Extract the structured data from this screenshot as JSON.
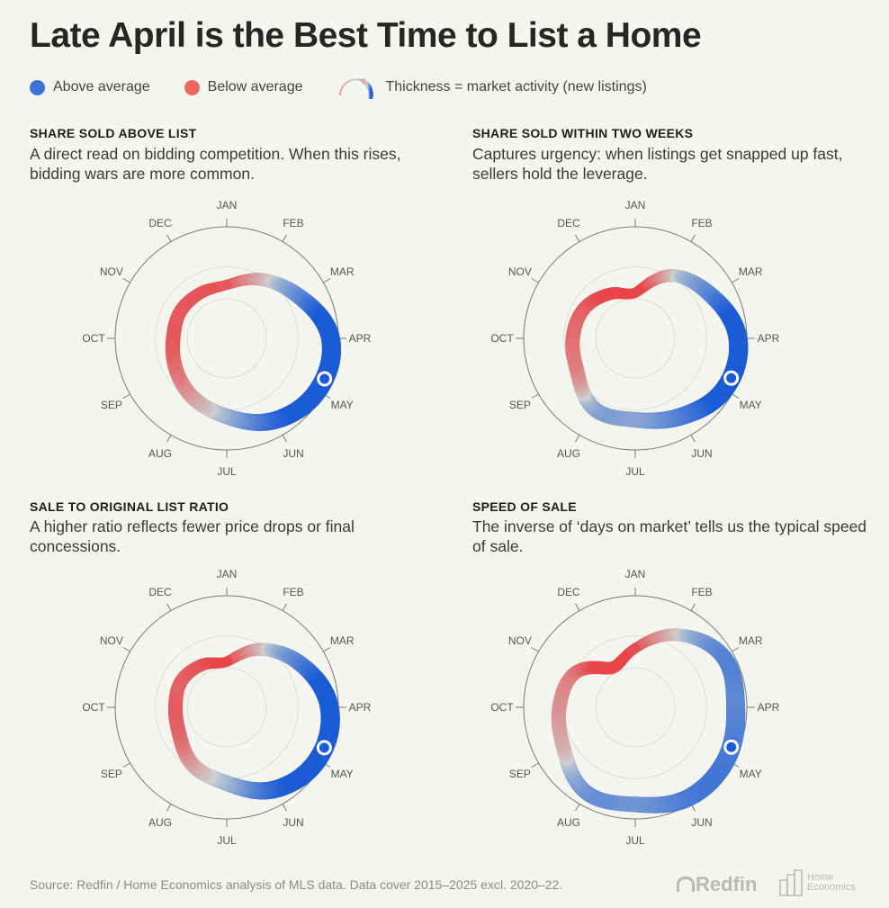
{
  "title": "Late April is the Best Time to List a Home",
  "legend": {
    "above": "Above average",
    "below": "Below average",
    "thickness": "Thickness = market activity (new listings)"
  },
  "colors": {
    "above": "#1a5bd6",
    "mid": "#cdd3d1",
    "below": "#e8454a",
    "background": "#f5f5f0"
  },
  "months": [
    "JAN",
    "FEB",
    "MAR",
    "APR",
    "MAY",
    "JUN",
    "JUL",
    "AUG",
    "SEP",
    "OCT",
    "NOV",
    "DEC"
  ],
  "chart_data": [
    {
      "type": "radial-line",
      "title": "SHARE SOLD ABOVE LIST",
      "description": "A direct read on bidding competition. When this rises, bidding wars are more common.",
      "rlim": [
        0,
        1
      ],
      "values": [
        0.48,
        0.61,
        0.75,
        0.93,
        0.94,
        0.85,
        0.7,
        0.61,
        0.53,
        0.48,
        0.48,
        0.47
      ],
      "thickness_activity": [
        0.35,
        0.55,
        0.8,
        1.0,
        1.0,
        0.9,
        0.75,
        0.72,
        0.68,
        0.66,
        0.6,
        0.5
      ],
      "marker": "late April"
    },
    {
      "type": "radial-line",
      "title": "SHARE SOLD WITHIN TWO WEEKS",
      "description": "Captures urgency: when listings get snapped up fast, sellers hold the leverage.",
      "rlim": [
        0,
        1
      ],
      "values": [
        0.41,
        0.65,
        0.78,
        0.92,
        0.92,
        0.81,
        0.73,
        0.73,
        0.6,
        0.56,
        0.53,
        0.46
      ],
      "thickness_activity": [
        0.35,
        0.55,
        0.8,
        1.0,
        1.0,
        0.9,
        0.75,
        0.72,
        0.68,
        0.66,
        0.6,
        0.5
      ],
      "marker": "late April"
    },
    {
      "type": "radial-line",
      "title": "SALE TO ORIGINAL LIST RATIO",
      "description": "A higher ratio reflects fewer price drops or final concessions.",
      "rlim": [
        0,
        1
      ],
      "values": [
        0.41,
        0.6,
        0.77,
        0.92,
        0.94,
        0.85,
        0.68,
        0.6,
        0.49,
        0.46,
        0.47,
        0.44
      ],
      "thickness_activity": [
        0.35,
        0.55,
        0.8,
        1.0,
        1.0,
        0.9,
        0.75,
        0.72,
        0.68,
        0.66,
        0.6,
        0.5
      ],
      "marker": "late April"
    },
    {
      "type": "radial-line",
      "title": "SPEED OF SALE",
      "description": "The inverse of ‘days on market’ tells us the typical speed of sale.",
      "rlim": [
        0,
        1
      ],
      "values": [
        0.53,
        0.75,
        0.91,
        0.9,
        0.94,
        0.94,
        0.87,
        0.88,
        0.74,
        0.68,
        0.62,
        0.41
      ],
      "thickness_activity": [
        0.35,
        0.55,
        0.8,
        1.0,
        1.0,
        0.9,
        0.75,
        0.72,
        0.68,
        0.66,
        0.6,
        0.5
      ],
      "marker": "late April"
    }
  ],
  "footer": {
    "source": "Source: Redfin / Home Economics analysis of MLS data. Data cover 2015–2025 excl. 2020–22.",
    "logo_redfin": "Redfin",
    "logo_home_economics": "Home Economics"
  }
}
